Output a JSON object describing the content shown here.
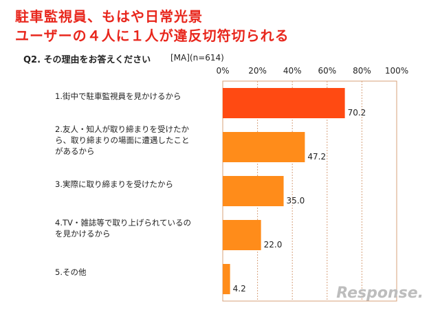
{
  "titles": {
    "line1": "駐車監視員、もはや日常光景",
    "line2": "ユーザーの４人に１人が違反切符切られる"
  },
  "question": "Q2. その理由をお答えください",
  "note": "[MA](n=614)",
  "watermark": "Response.",
  "colors": {
    "highlight": "#ff4a12",
    "bar": "#ff8c1a",
    "grid": "#d7a07a",
    "title": "#e8261c"
  },
  "chart_data": {
    "type": "bar",
    "orientation": "horizontal",
    "categories": [
      [
        "1.街中で駐車監視員を見かけるから"
      ],
      [
        "2.友人・知人が取り締まりを受けたか",
        "ら、取り締まりの場面に遭遇したこと",
        "があるから"
      ],
      [
        "3.実際に取り締まりを受けたから"
      ],
      [
        "4.TV・雑誌等で取り上げられているの",
        "を見かけるから"
      ],
      [
        "5.その他"
      ]
    ],
    "values": [
      70.2,
      47.2,
      35.0,
      22.0,
      4.2
    ],
    "value_labels": [
      "70.2",
      "47.2",
      "35.0",
      "22.0",
      "4.2"
    ],
    "xlim": [
      0,
      100
    ],
    "ticks": [
      "0%",
      "20%",
      "40%",
      "60%",
      "80%",
      "100%"
    ],
    "grid": true
  }
}
